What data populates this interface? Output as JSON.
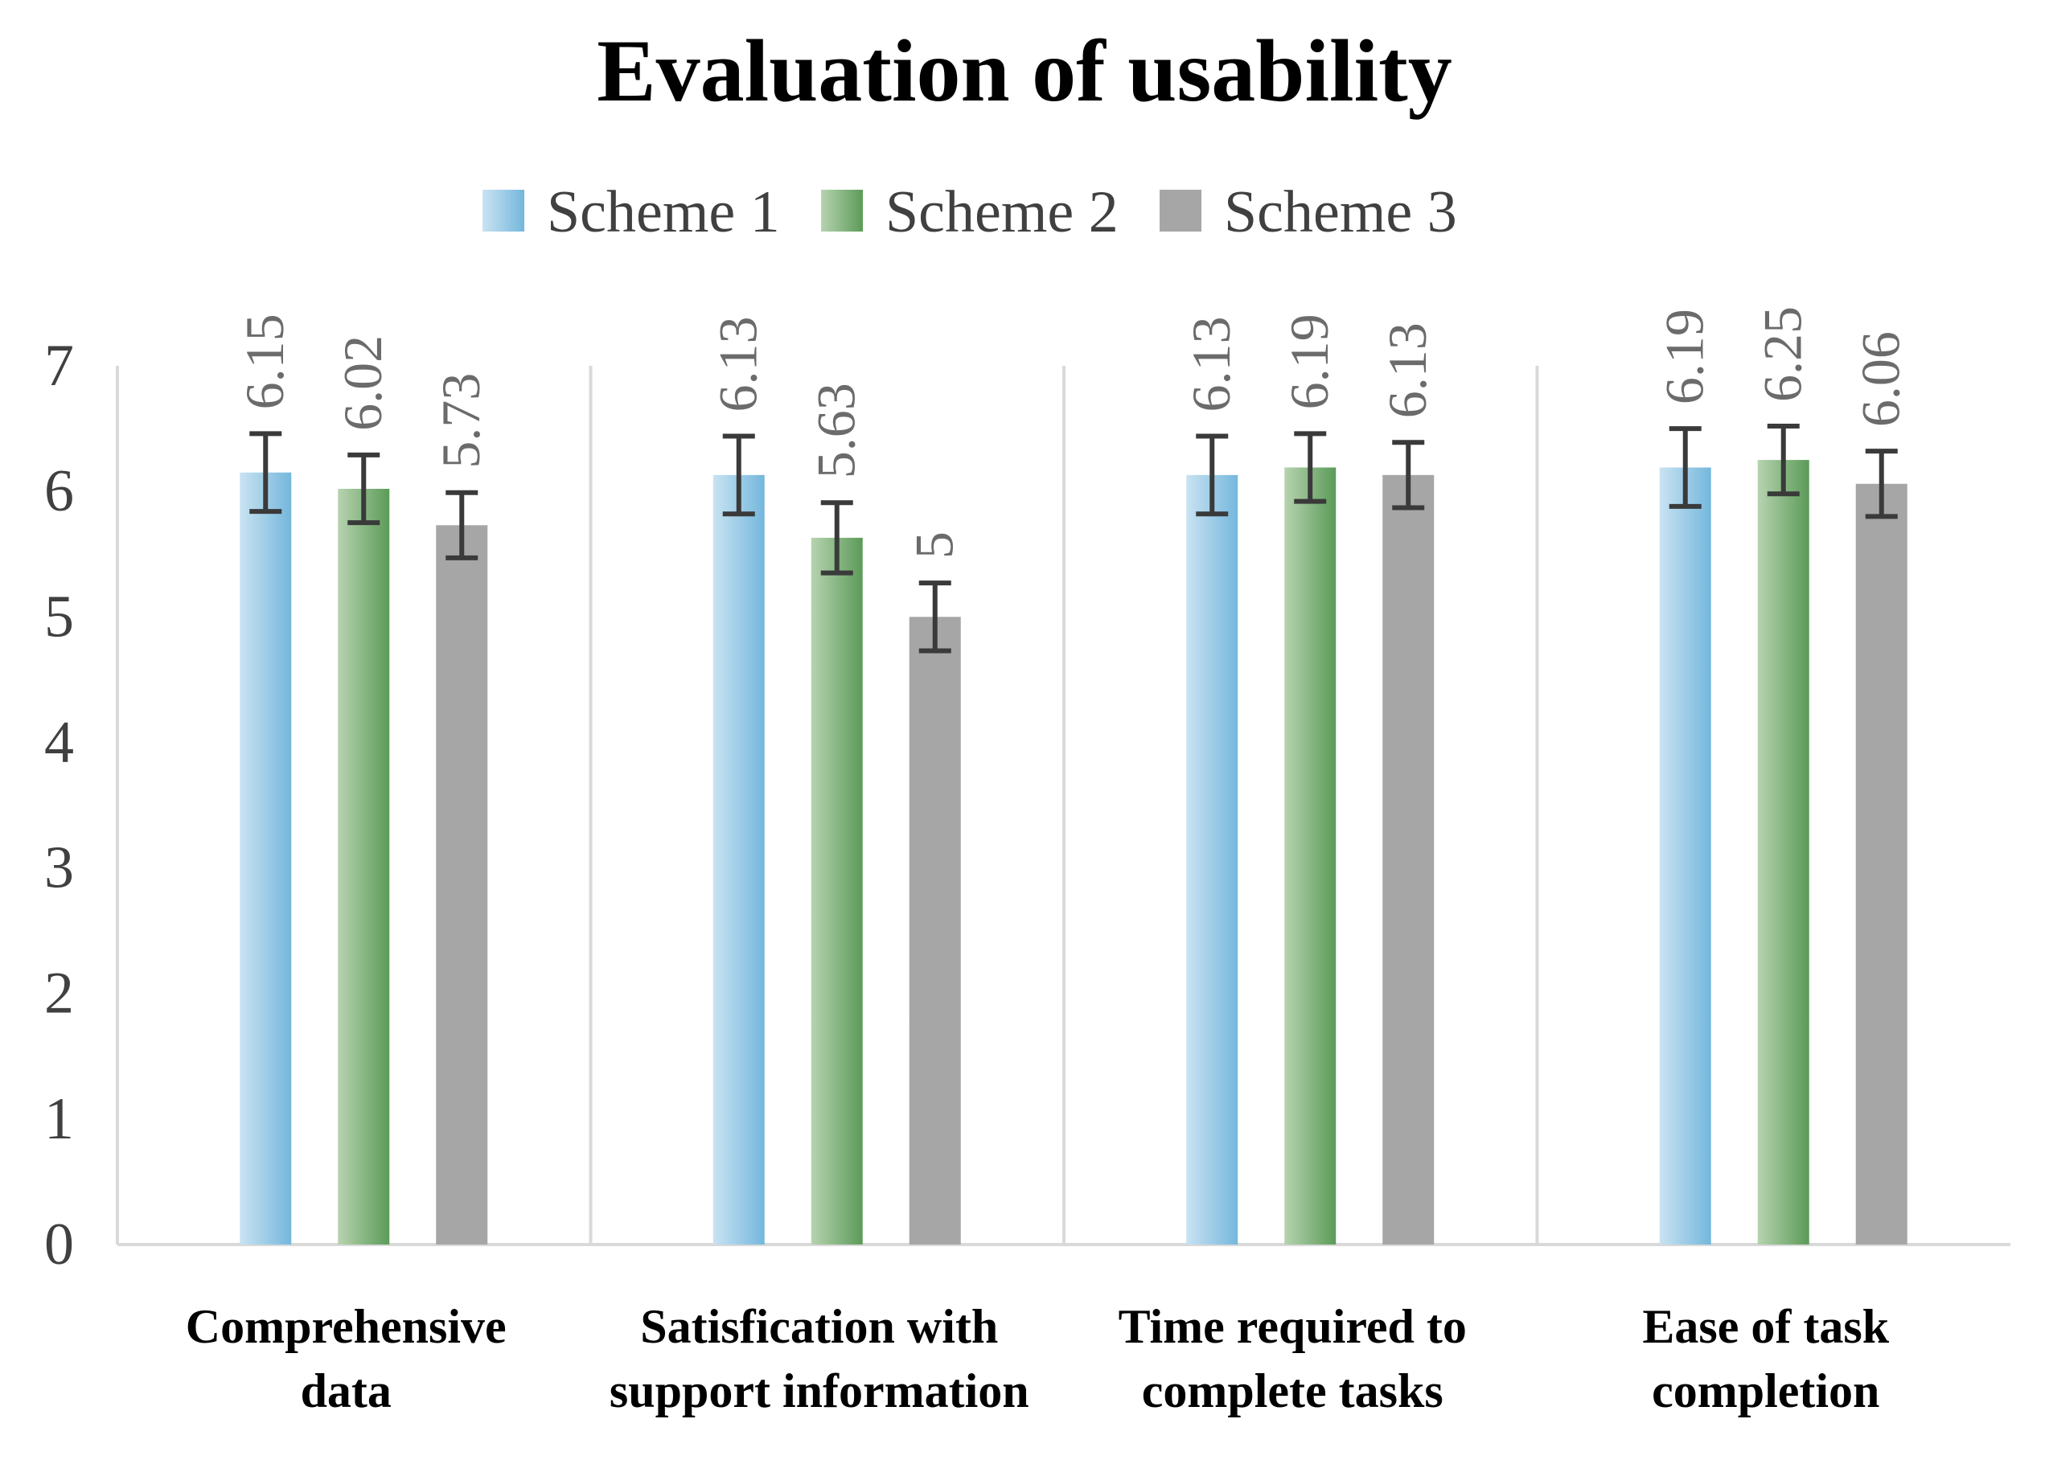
{
  "chart_data": {
    "type": "bar",
    "title": "Evaluation of usability",
    "xlabel": "",
    "ylabel": "",
    "ylim": [
      0,
      7
    ],
    "yticks": [
      "0",
      "1",
      "2",
      "3",
      "4",
      "5",
      "6",
      "7"
    ],
    "legend_position": "top-center",
    "categories": [
      [
        "Comprehensive",
        "data"
      ],
      [
        "Satisfication with",
        "support information"
      ],
      [
        "Time required to",
        "complete tasks"
      ],
      [
        "Ease of task",
        "completion"
      ]
    ],
    "series": [
      {
        "name": "Scheme 1",
        "color": "#74b7dc",
        "color_light": "#c9e3f2",
        "values": [
          6.15,
          6.13,
          6.13,
          6.19
        ],
        "labels": [
          "6.15",
          "6.13",
          "6.13",
          "6.19"
        ],
        "error": [
          0.31,
          0.31,
          0.31,
          0.31
        ]
      },
      {
        "name": "Scheme 2",
        "color": "#5b9b58",
        "color_light": "#b7d3b0",
        "values": [
          6.02,
          5.63,
          6.19,
          6.25
        ],
        "labels": [
          "6.02",
          "5.63",
          "6.19",
          "6.25"
        ],
        "error": [
          0.27,
          0.28,
          0.27,
          0.27
        ]
      },
      {
        "name": "Scheme 3",
        "color": "#a6a6a6",
        "color_light": "#a6a6a6",
        "values": [
          5.73,
          5.0,
          6.13,
          6.06
        ],
        "labels": [
          "5.73",
          "5",
          "6.13",
          "6.06"
        ],
        "error": [
          0.26,
          0.27,
          0.26,
          0.26
        ]
      }
    ]
  }
}
